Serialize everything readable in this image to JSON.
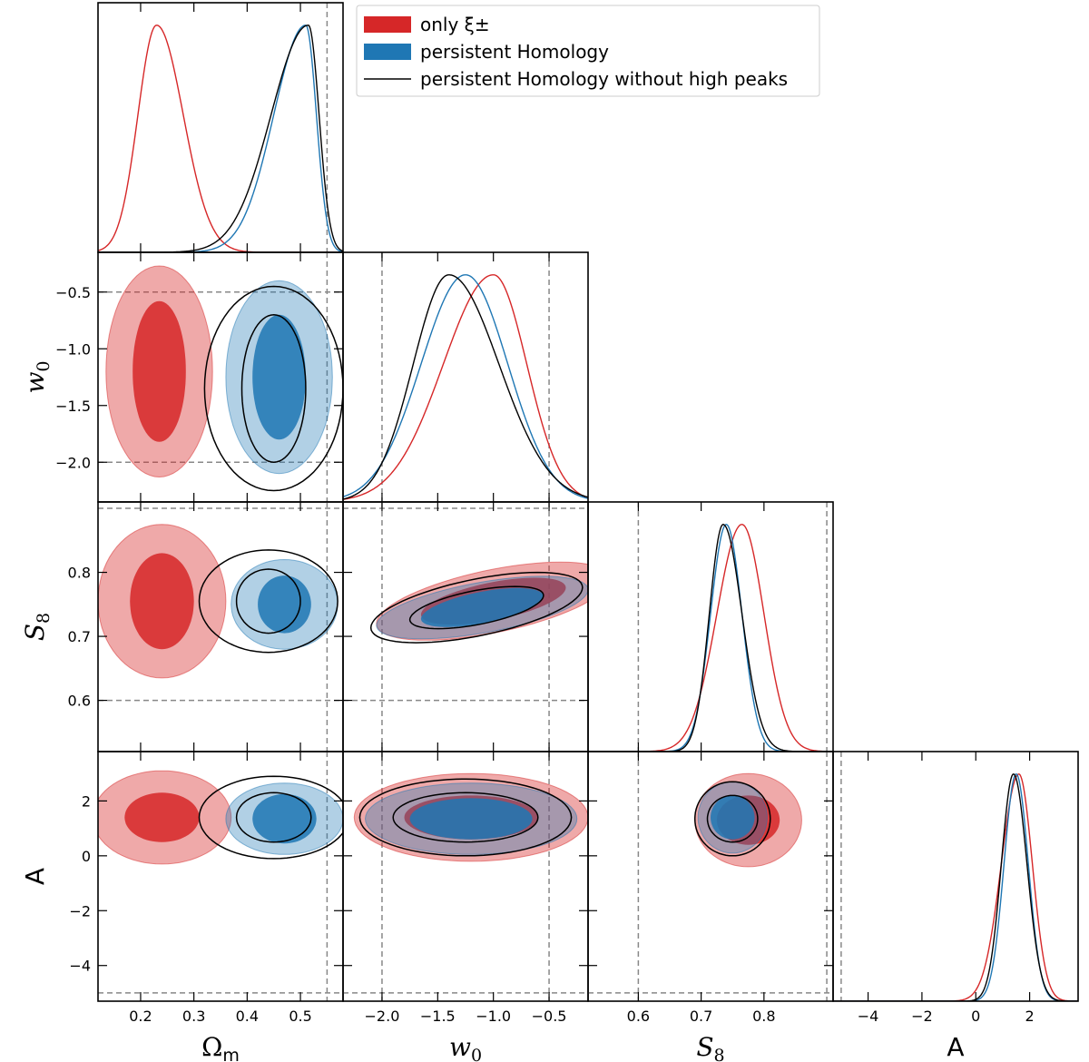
{
  "chart_data": {
    "type": "corner-plot",
    "parameters": [
      {
        "key": "om",
        "label": "Ωm",
        "range": [
          0.12,
          0.58
        ],
        "ticks": [
          0.2,
          0.3,
          0.4,
          0.5
        ],
        "tick_labels": [
          "0.2",
          "0.3",
          "0.4",
          "0.5"
        ],
        "truth": 0.55
      },
      {
        "key": "w0",
        "label": "w0",
        "range": [
          -2.35,
          -0.15
        ],
        "ticks": [
          -2.0,
          -1.5,
          -1.0,
          -0.5
        ],
        "tick_labels": [
          "−2.0",
          "−1.5",
          "−1.0",
          "−0.5"
        ],
        "truth_lines": [
          -2.0,
          -0.5
        ]
      },
      {
        "key": "s8",
        "label": "S8",
        "range": [
          0.52,
          0.91
        ],
        "ticks": [
          0.6,
          0.7,
          0.8
        ],
        "tick_labels": [
          "0.6",
          "0.7",
          "0.8"
        ],
        "truth_lines": [
          0.6,
          0.9
        ]
      },
      {
        "key": "A",
        "label": "A",
        "range": [
          -5.3,
          3.8
        ],
        "ticks": [
          -4,
          -2,
          0,
          2
        ],
        "tick_labels": [
          "−4",
          "−2",
          "0",
          "2"
        ],
        "truth_lines": [
          -5.0
        ]
      }
    ],
    "series": [
      {
        "name": "only ξ±",
        "color": "#d62728",
        "style": "filled"
      },
      {
        "name": "persistent Homology",
        "color": "#1f77b4",
        "style": "filled"
      },
      {
        "name": "persistent Homology without high peaks",
        "color": "#000000",
        "style": "line"
      }
    ],
    "marginals": {
      "om": [
        {
          "series": 0,
          "peak": 0.23,
          "sigma_left": 0.035,
          "sigma_right": 0.05
        },
        {
          "series": 1,
          "peak": 0.51,
          "sigma_left": 0.06,
          "sigma_right": 0.02
        },
        {
          "series": 2,
          "peak": 0.515,
          "sigma_left": 0.07,
          "sigma_right": 0.02
        }
      ],
      "w0": [
        {
          "series": 0,
          "peak": -1.0,
          "sigma_left": 0.45,
          "sigma_right": 0.3
        },
        {
          "series": 1,
          "peak": -1.25,
          "sigma_left": 0.4,
          "sigma_right": 0.38
        },
        {
          "series": 2,
          "peak": -1.4,
          "sigma_left": 0.32,
          "sigma_right": 0.45
        }
      ],
      "s8": [
        {
          "series": 0,
          "peak": 0.765,
          "sigma_left": 0.04,
          "sigma_right": 0.035
        },
        {
          "series": 1,
          "peak": 0.74,
          "sigma_left": 0.025,
          "sigma_right": 0.025
        },
        {
          "series": 2,
          "peak": 0.735,
          "sigma_left": 0.022,
          "sigma_right": 0.03
        }
      ],
      "A": [
        {
          "series": 0,
          "peak": 1.6,
          "sigma_left": 0.65,
          "sigma_right": 0.5
        },
        {
          "series": 1,
          "peak": 1.5,
          "sigma_left": 0.45,
          "sigma_right": 0.45
        },
        {
          "series": 2,
          "peak": 1.4,
          "sigma_left": 0.45,
          "sigma_right": 0.5
        }
      ]
    },
    "contours": [
      {
        "x": "om",
        "y": "w0",
        "series": 0,
        "cx": 0.235,
        "cy": -1.2,
        "r68": [
          0.05,
          0.62
        ],
        "r95": [
          0.1,
          0.93
        ]
      },
      {
        "x": "om",
        "y": "w0",
        "series": 1,
        "cx": 0.46,
        "cy": -1.25,
        "r68": [
          0.05,
          0.55
        ],
        "r95": [
          0.1,
          0.85
        ]
      },
      {
        "x": "om",
        "y": "w0",
        "series": 2,
        "cx": 0.45,
        "cy": -1.35,
        "r68": [
          0.06,
          0.65
        ],
        "r95": [
          0.13,
          0.9
        ]
      },
      {
        "x": "om",
        "y": "s8",
        "series": 0,
        "cx": 0.24,
        "cy": 0.755,
        "r68": [
          0.06,
          0.075
        ],
        "r95": [
          0.12,
          0.12
        ]
      },
      {
        "x": "om",
        "y": "s8",
        "series": 1,
        "cx": 0.47,
        "cy": 0.75,
        "r68": [
          0.05,
          0.045
        ],
        "r95": [
          0.1,
          0.07
        ]
      },
      {
        "x": "om",
        "y": "s8",
        "series": 2,
        "cx": 0.44,
        "cy": 0.755,
        "r68": [
          0.06,
          0.05
        ],
        "r95": [
          0.13,
          0.08
        ]
      },
      {
        "x": "w0",
        "y": "s8",
        "series": 0,
        "cx": -1.0,
        "cy": 0.755,
        "r68": [
          0.65,
          0.03
        ],
        "r95": [
          1.05,
          0.05
        ],
        "tilt": 0.7
      },
      {
        "x": "w0",
        "y": "s8",
        "series": 1,
        "cx": -1.1,
        "cy": 0.745,
        "r68": [
          0.55,
          0.025
        ],
        "r95": [
          0.95,
          0.04
        ],
        "tilt": 0.7
      },
      {
        "x": "w0",
        "y": "s8",
        "series": 2,
        "cx": -1.15,
        "cy": 0.745,
        "r68": [
          0.6,
          0.027
        ],
        "r95": [
          0.95,
          0.045
        ],
        "tilt": 0.7
      },
      {
        "x": "om",
        "y": "A",
        "series": 0,
        "cx": 0.24,
        "cy": 1.4,
        "r68": [
          0.07,
          0.9
        ],
        "r95": [
          0.13,
          1.7
        ]
      },
      {
        "x": "om",
        "y": "A",
        "series": 1,
        "cx": 0.47,
        "cy": 1.35,
        "r68": [
          0.06,
          0.9
        ],
        "r95": [
          0.11,
          1.3
        ]
      },
      {
        "x": "om",
        "y": "A",
        "series": 2,
        "cx": 0.45,
        "cy": 1.4,
        "r68": [
          0.07,
          0.9
        ],
        "r95": [
          0.14,
          1.5
        ]
      },
      {
        "x": "w0",
        "y": "A",
        "series": 0,
        "cx": -1.2,
        "cy": 1.4,
        "r68": [
          0.6,
          0.8
        ],
        "r95": [
          1.05,
          1.6
        ]
      },
      {
        "x": "w0",
        "y": "A",
        "series": 1,
        "cx": -1.2,
        "cy": 1.35,
        "r68": [
          0.55,
          0.75
        ],
        "r95": [
          0.95,
          1.3
        ]
      },
      {
        "x": "w0",
        "y": "A",
        "series": 2,
        "cx": -1.25,
        "cy": 1.4,
        "r68": [
          0.65,
          0.9
        ],
        "r95": [
          0.95,
          1.4
        ]
      },
      {
        "x": "s8",
        "y": "A",
        "series": 0,
        "cx": 0.775,
        "cy": 1.3,
        "r68": [
          0.05,
          0.9
        ],
        "r95": [
          0.085,
          1.7
        ]
      },
      {
        "x": "s8",
        "y": "A",
        "series": 1,
        "cx": 0.75,
        "cy": 1.4,
        "r68": [
          0.035,
          0.8
        ],
        "r95": [
          0.055,
          1.3
        ]
      },
      {
        "x": "s8",
        "y": "A",
        "series": 2,
        "cx": 0.75,
        "cy": 1.35,
        "r68": [
          0.04,
          0.85
        ],
        "r95": [
          0.06,
          1.35
        ]
      }
    ],
    "legend_placement": "top-right of triangle",
    "grid": false
  }
}
